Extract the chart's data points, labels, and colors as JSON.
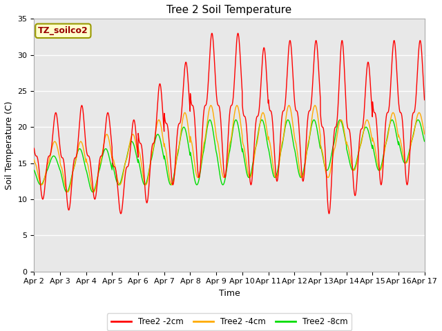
{
  "title": "Tree 2 Soil Temperature",
  "xlabel": "Time",
  "ylabel": "Soil Temperature (C)",
  "ylim": [
    0,
    35
  ],
  "yticks": [
    0,
    5,
    10,
    15,
    20,
    25,
    30,
    35
  ],
  "x_tick_labels": [
    "Apr 2",
    "Apr 3",
    "Apr 4",
    "Apr 5",
    "Apr 6",
    "Apr 7",
    "Apr 8",
    "Apr 9",
    "Apr 10",
    "Apr 11",
    "Apr 12",
    "Apr 13",
    "Apr 14",
    "Apr 15",
    "Apr 16",
    "Apr 17"
  ],
  "legend_label": "TZ_soilco2",
  "series_labels": [
    "Tree2 -2cm",
    "Tree2 -4cm",
    "Tree2 -8cm"
  ],
  "series_colors": [
    "#ff0000",
    "#ffaa00",
    "#00dd00"
  ],
  "background_color": "#e8e8e8",
  "plot_bg_color": "#e8e8e8",
  "grid_color": "#ffffff",
  "title_fontsize": 11,
  "axis_fontsize": 9,
  "tick_fontsize": 8,
  "legend_box_color": "#ffffcc",
  "legend_box_edge": "#cccc00",
  "legend_text_color": "#990000"
}
